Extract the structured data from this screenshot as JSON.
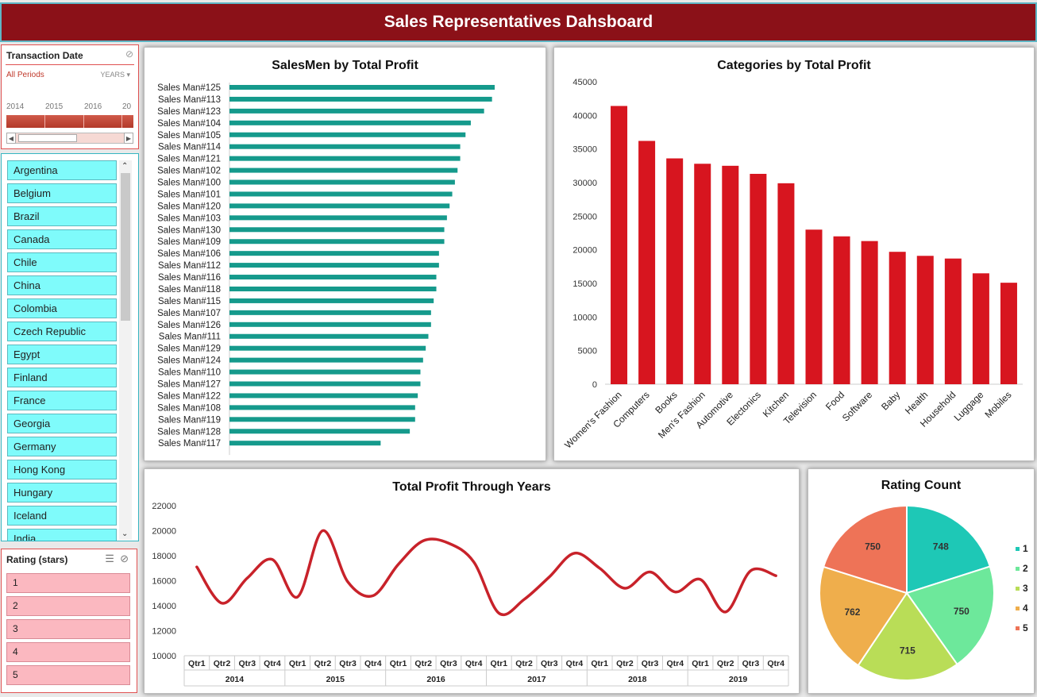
{
  "header": {
    "title": "Sales Representatives Dahsboard"
  },
  "timeline": {
    "title": "Transaction Date",
    "period": "All Periods",
    "level": "YEARS",
    "years": [
      "2014",
      "2015",
      "2016",
      "20"
    ]
  },
  "countries": [
    "Argentina",
    "Belgium",
    "Brazil",
    "Canada",
    "Chile",
    "China",
    "Colombia",
    "Czech Republic",
    "Egypt",
    "Finland",
    "France",
    "Georgia",
    "Germany",
    "Hong Kong",
    "Hungary",
    "Iceland",
    "India"
  ],
  "rating_slicer": {
    "title": "Rating (stars)",
    "items": [
      "1",
      "2",
      "3",
      "4",
      "5"
    ]
  },
  "colors": {
    "header": "#8b1118",
    "teal_bar": "#159a8c",
    "red_bar": "#d7151f",
    "line": "#c8222a",
    "country_btn": "#7ffbfb",
    "rating_btn": "#fbb8c0"
  },
  "chart_data": [
    {
      "type": "bar",
      "orientation": "horizontal",
      "title": "SalesMen by Total Profit",
      "categories": [
        "Sales Man#125",
        "Sales Man#113",
        "Sales Man#123",
        "Sales Man#104",
        "Sales Man#105",
        "Sales Man#114",
        "Sales Man#121",
        "Sales Man#102",
        "Sales Man#100",
        "Sales Man#101",
        "Sales Man#120",
        "Sales Man#103",
        "Sales Man#130",
        "Sales Man#109",
        "Sales Man#106",
        "Sales Man#112",
        "Sales Man#116",
        "Sales Man#118",
        "Sales Man#115",
        "Sales Man#107",
        "Sales Man#126",
        "Sales Man#111",
        "Sales Man#129",
        "Sales Man#124",
        "Sales Man#110",
        "Sales Man#127",
        "Sales Man#122",
        "Sales Man#108",
        "Sales Man#119",
        "Sales Man#128",
        "Sales Man#117"
      ],
      "values": [
        100,
        99,
        96,
        91,
        89,
        87,
        87,
        86,
        85,
        84,
        83,
        82,
        81,
        81,
        79,
        79,
        78,
        78,
        77,
        76,
        76,
        75,
        74,
        73,
        72,
        72,
        71,
        70,
        70,
        68,
        57
      ],
      "value_note": "relative bar lengths (no axis printed)"
    },
    {
      "type": "bar",
      "title": "Categories by Total Profit",
      "categories": [
        "Women's Fashion",
        "Computers",
        "Books",
        "Men's Fashion",
        "Automotive",
        "Electonics",
        "Kitchen",
        "Television",
        "Food",
        "Software",
        "Baby",
        "Health",
        "Household",
        "Luggage",
        "Mobiles"
      ],
      "values": [
        41400,
        36200,
        33600,
        32800,
        32500,
        31300,
        29900,
        23000,
        22000,
        21300,
        19700,
        19100,
        18700,
        16500,
        15100
      ],
      "ylim": [
        0,
        45000
      ],
      "yticks": [
        "0",
        "5000",
        "10000",
        "15000",
        "20000",
        "25000",
        "30000",
        "35000",
        "40000",
        "45000"
      ]
    },
    {
      "type": "line",
      "title": "Total Profit Through Years",
      "years": [
        "2014",
        "2015",
        "2016",
        "2017",
        "2018",
        "2019"
      ],
      "quarters": [
        "Qtr1",
        "Qtr2",
        "Qtr3",
        "Qtr4"
      ],
      "values": [
        17100,
        14200,
        16200,
        17700,
        14700,
        20000,
        15900,
        14800,
        17300,
        19200,
        19000,
        17500,
        13400,
        14500,
        16300,
        18200,
        17000,
        15400,
        16700,
        15100,
        16100,
        13500,
        16800,
        16400
      ],
      "ylim": [
        10000,
        22000
      ],
      "yticks": [
        "10000",
        "12000",
        "14000",
        "16000",
        "18000",
        "20000",
        "22000"
      ]
    },
    {
      "type": "pie",
      "title": "Rating Count",
      "labels": [
        "1",
        "2",
        "3",
        "4",
        "5"
      ],
      "values": [
        748,
        750,
        715,
        762,
        750
      ],
      "colors": [
        "#1ec8b6",
        "#6de89b",
        "#b9dd57",
        "#efae4c",
        "#ee7357"
      ],
      "legend": "right"
    }
  ]
}
